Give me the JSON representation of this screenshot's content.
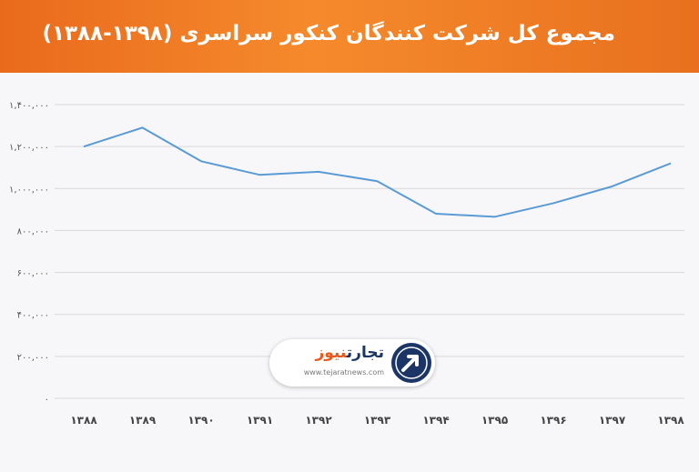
{
  "header": {
    "title": "مجموع کل شرکت کنندگان کنکور سراسری (۱۳۹۸-۱۳۸۸)"
  },
  "colors": {
    "header_start": "#e96a1c",
    "header_end": "#f58a2c",
    "line": "#5b9bd5",
    "grid": "#d9d9d9",
    "logo_dark": "#1b3566",
    "logo_accent": "#e8591e"
  },
  "logo": {
    "name_part1": "تجارت",
    "name_part2": "نیوز",
    "url": "www.tejaratnews.com",
    "icon": "arrow-circle-logo-icon"
  },
  "chart_data": {
    "type": "line",
    "title": "مجموع کل شرکت کنندگان کنکور سراسری (۱۳۹۸-۱۳۸۸)",
    "xlabel": "",
    "ylabel": "",
    "categories": [
      "۱۳۸۸",
      "۱۳۸۹",
      "۱۳۹۰",
      "۱۳۹۱",
      "۱۳۹۲",
      "۱۳۹۳",
      "۱۳۹۴",
      "۱۳۹۵",
      "۱۳۹۶",
      "۱۳۹۷",
      "۱۳۹۸"
    ],
    "series": [
      {
        "values": [
          1200000,
          1290000,
          1130000,
          1065000,
          1080000,
          1035000,
          880000,
          865000,
          930000,
          1010000,
          1120000
        ]
      }
    ],
    "ylim": [
      0,
      1400000
    ],
    "yticks": [
      0,
      200000,
      400000,
      600000,
      800000,
      1000000,
      1200000,
      1400000
    ],
    "ytick_labels": [
      "۰",
      "۲۰۰,۰۰۰",
      "۴۰۰,۰۰۰",
      "۶۰۰,۰۰۰",
      "۸۰۰,۰۰۰",
      "۱,۰۰۰,۰۰۰",
      "۱,۲۰۰,۰۰۰",
      "۱,۴۰۰,۰۰۰"
    ],
    "grid": true,
    "legend": "none"
  }
}
